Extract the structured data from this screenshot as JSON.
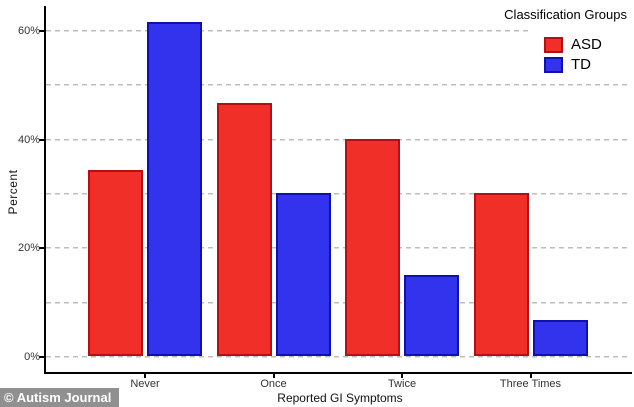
{
  "watermark": "© Autism Journal",
  "chart_data": {
    "type": "bar",
    "title": "",
    "legend_title": "Classification Groups",
    "legend_position": "top-right",
    "xlabel": "Reported GI Symptoms",
    "ylabel": "Percent",
    "categories": [
      "Never",
      "Once",
      "Twice",
      "Three Times"
    ],
    "series": [
      {
        "name": "ASD",
        "fill_color": "#f03028",
        "border_color": "#b40f14",
        "values": [
          34.3,
          46.5,
          40.0,
          30.0
        ]
      },
      {
        "name": "TD",
        "fill_color": "#3333ee",
        "border_color": "#100fb0",
        "values": [
          61.4,
          30.0,
          15.0,
          6.7
        ]
      }
    ],
    "ylim": [
      0,
      63
    ],
    "y_ticks": [
      {
        "value": 0,
        "label": "0%"
      },
      {
        "value": 20,
        "label": "20%"
      },
      {
        "value": 40,
        "label": "40%"
      },
      {
        "value": 60,
        "label": "60%"
      }
    ],
    "y_gridlines": [
      0,
      10,
      20,
      30,
      40,
      50,
      60
    ],
    "grid_style": "dashed",
    "grid_color": "#bdbdbd"
  }
}
